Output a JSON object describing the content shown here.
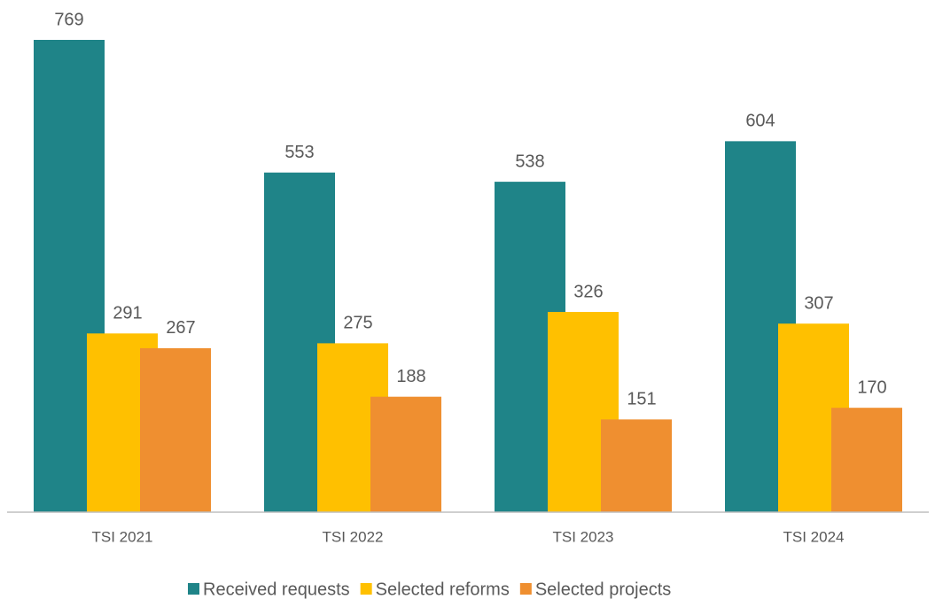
{
  "chart_data": {
    "type": "bar",
    "categories": [
      "TSI 2021",
      "TSI 2022",
      "TSI 2023",
      "TSI 2024"
    ],
    "series": [
      {
        "name": "Received requests",
        "color": "#1f8488",
        "values": [
          769,
          553,
          538,
          604
        ]
      },
      {
        "name": "Selected reforms",
        "color": "#ffc000",
        "values": [
          291,
          275,
          326,
          307
        ]
      },
      {
        "name": "Selected projects",
        "color": "#ef8f30",
        "values": [
          267,
          188,
          151,
          170
        ]
      }
    ],
    "legend": "bottom"
  }
}
